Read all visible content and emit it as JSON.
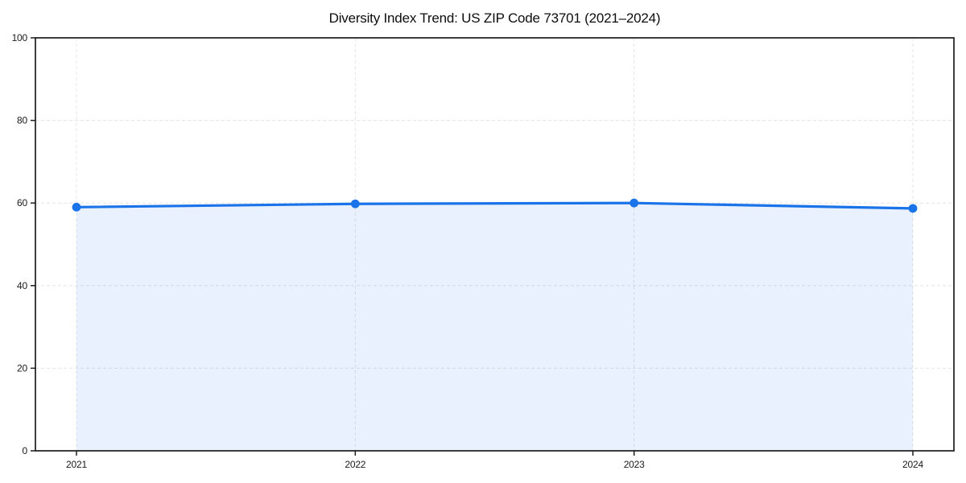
{
  "chart_data": {
    "type": "area",
    "title": "Diversity Index Trend: US ZIP Code 73701 (2021–2024)",
    "x": [
      "2021",
      "2022",
      "2023",
      "2024"
    ],
    "series": [
      {
        "name": "Diversity Index",
        "values": [
          59.0,
          59.8,
          60.0,
          58.7
        ]
      }
    ],
    "xlabel": "",
    "ylabel": "",
    "ylim": [
      0,
      100
    ],
    "y_ticks": [
      0,
      20,
      40,
      60,
      80,
      100
    ],
    "x_ticks": [
      "2021",
      "2022",
      "2023",
      "2024"
    ],
    "grid": true,
    "grid_style": "dashed",
    "legend": "none",
    "colors": {
      "line": "#1a73e8",
      "marker": "#1a73e8",
      "fill": "#1a73e8",
      "fill_opacity": 0.1,
      "grid": "#e4e4e4",
      "axis": "#1c1c1c",
      "tick_text": "#1a1a1a",
      "background": "#ffffff"
    }
  }
}
